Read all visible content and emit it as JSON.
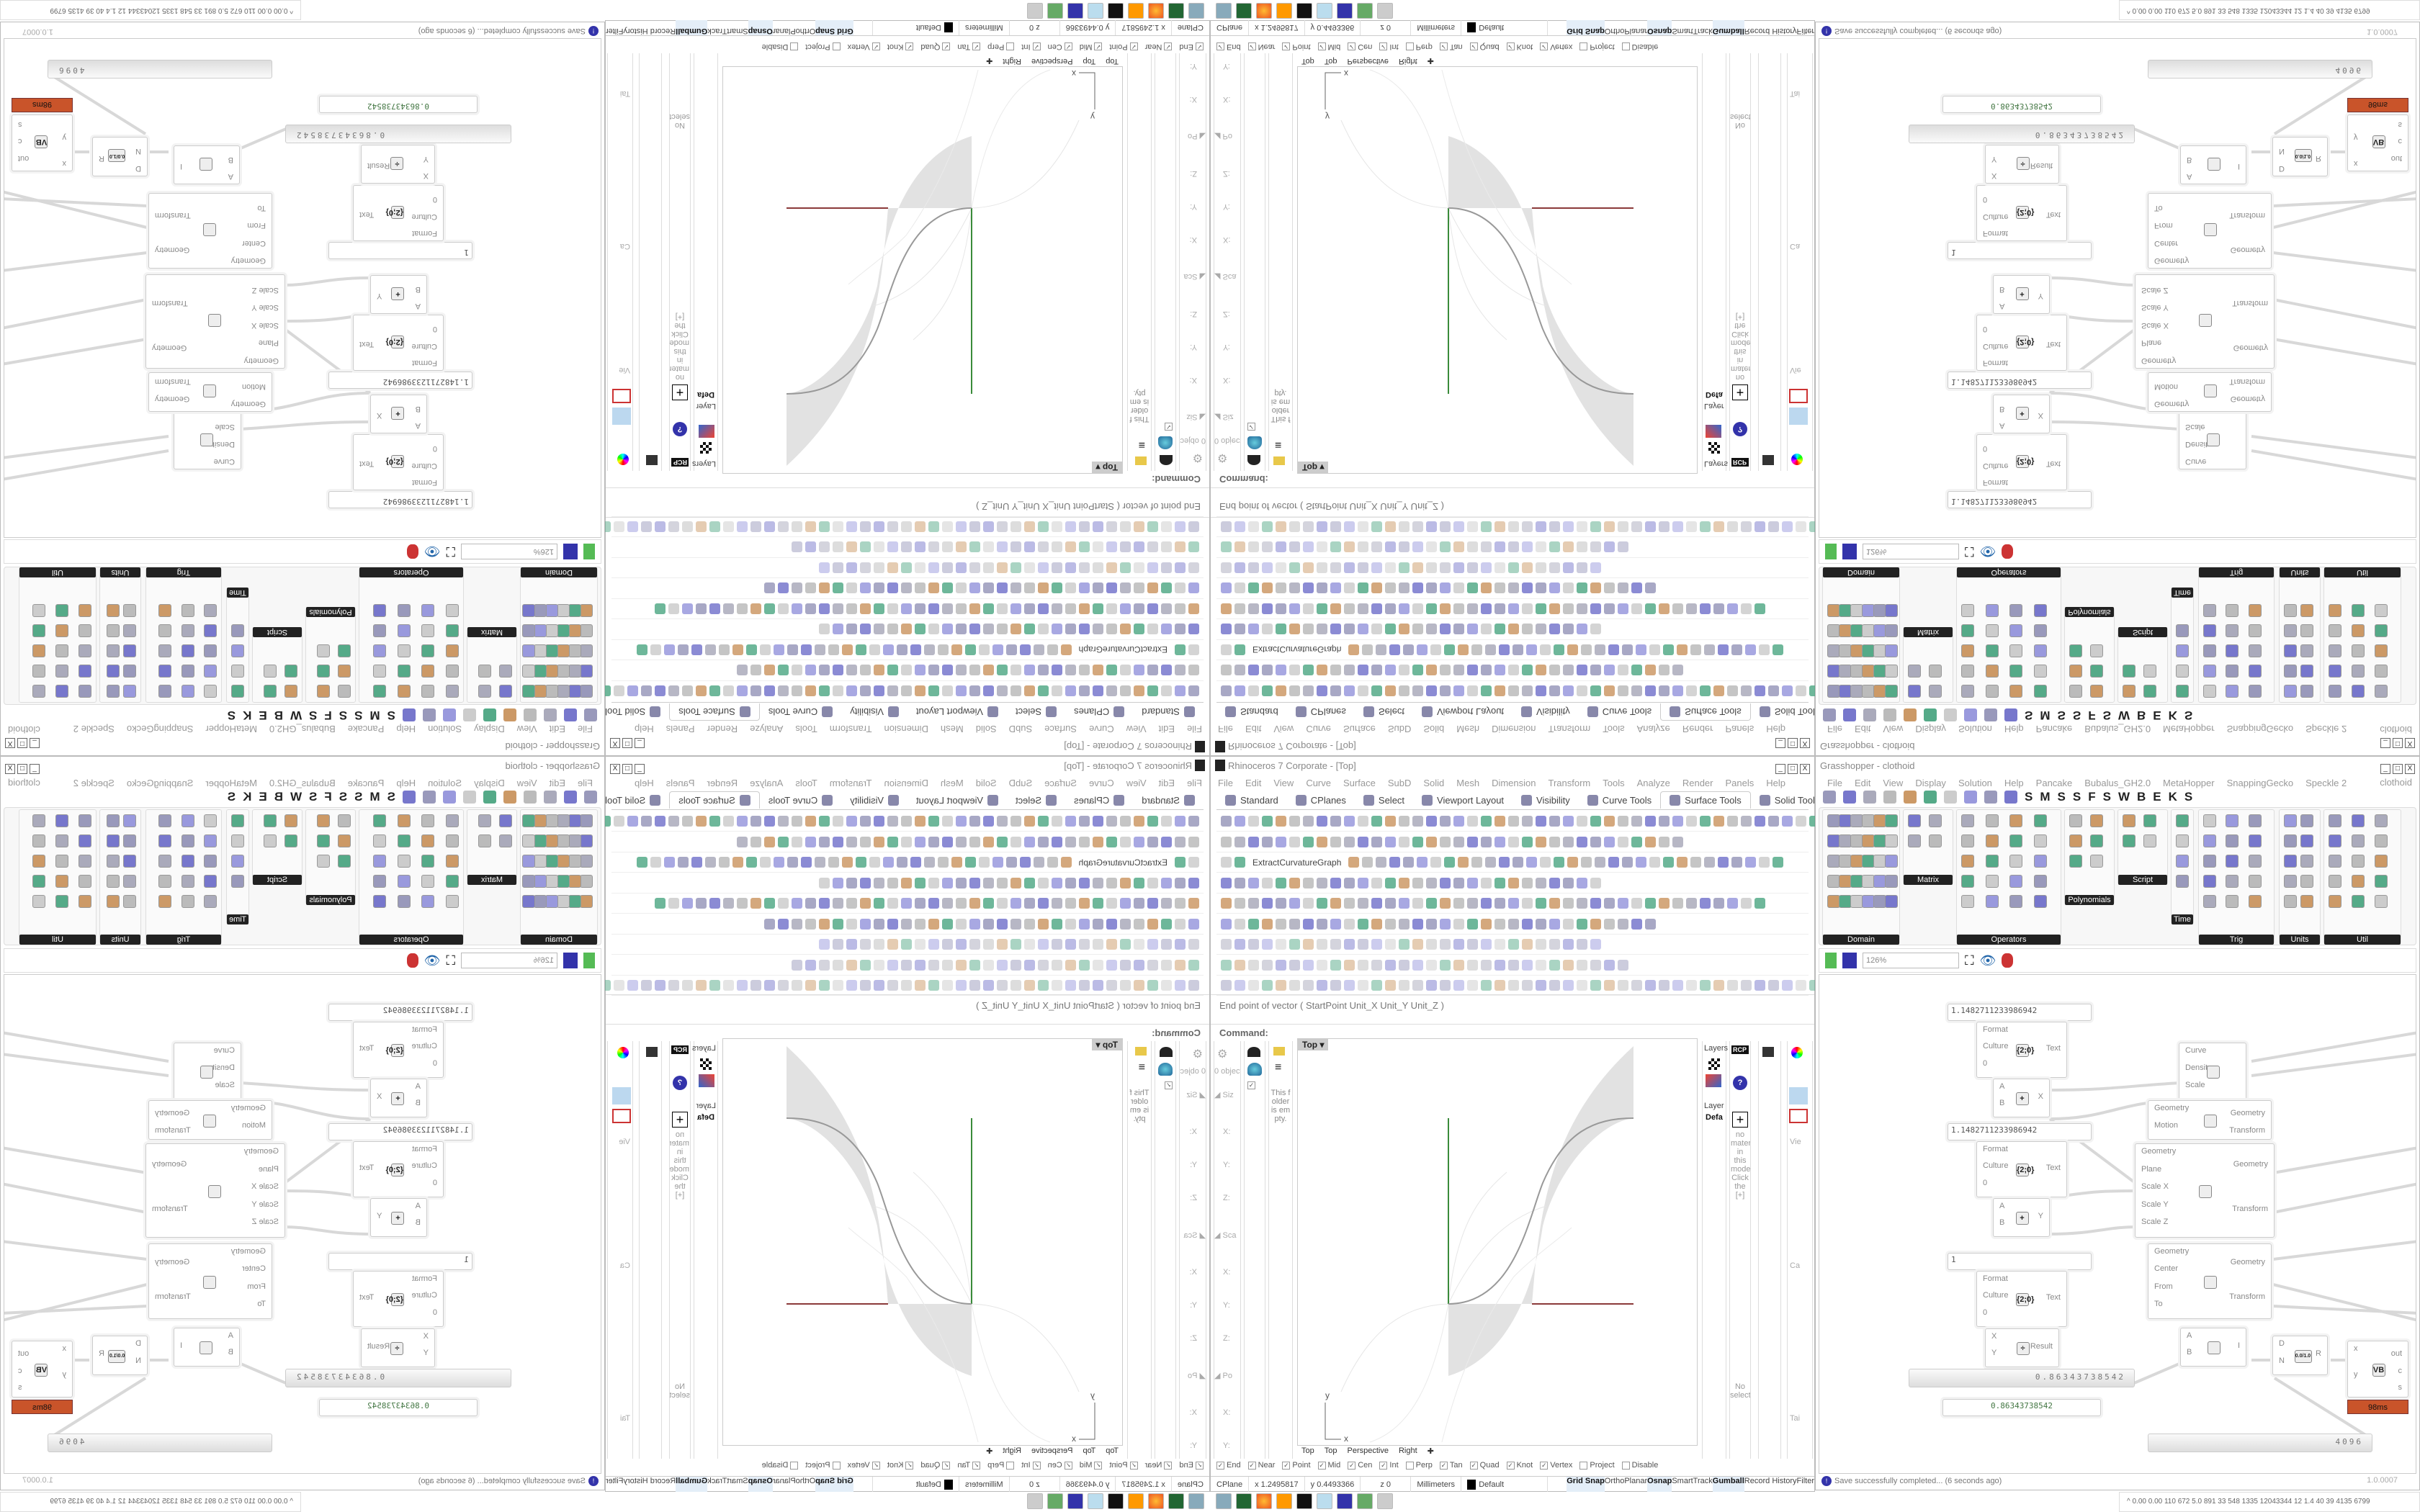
{
  "rhino": {
    "title": "Rhinoceros 7 Corporate - [Top]",
    "menu": [
      "File",
      "Edit",
      "View",
      "Curve",
      "Surface",
      "SubD",
      "Solid",
      "Mesh",
      "Dimension",
      "Transform",
      "Tools",
      "Analyze",
      "Render",
      "Panels",
      "Help"
    ],
    "tabs": [
      "Standard",
      "CPlanes",
      "Select",
      "Viewport Layout",
      "Visibility",
      "Curve Tools",
      "Surface Tools",
      "Solid Tools",
      "SubD"
    ],
    "active_tab": "Surface Tools",
    "toolbar_command": "ExtractCurvatureGraph",
    "command_history": "End point of vector ( StartPoint  Unit_X  Unit_Y  Unit_Z )",
    "command_prompt": "Command:",
    "properties": {
      "count": "0 object",
      "sections": [
        "Siz",
        "Sca",
        "Po",
        "Ro"
      ],
      "axes": [
        "X:",
        "Y:",
        "Z:"
      ]
    },
    "library_empty": "This folder is empty.",
    "layers": {
      "title": "Layers",
      "header": "Layer",
      "row": "Defa"
    },
    "materials_empty": "no material in this model. Click the [+]",
    "no_selection": "No selection",
    "side_labels": [
      "Vie",
      "Ca",
      "Tai",
      "Wa"
    ],
    "viewport": {
      "title": "Top",
      "tabs": [
        "Top",
        "Top",
        "Perspective",
        "Right"
      ],
      "axis_x": "x",
      "axis_y": "y"
    },
    "osnaps": [
      {
        "label": "End",
        "checked": true
      },
      {
        "label": "Near",
        "checked": true
      },
      {
        "label": "Point",
        "checked": true
      },
      {
        "label": "Mid",
        "checked": true
      },
      {
        "label": "Cen",
        "checked": true
      },
      {
        "label": "Int",
        "checked": true
      },
      {
        "label": "Perp",
        "checked": false
      },
      {
        "label": "Tan",
        "checked": true
      },
      {
        "label": "Quad",
        "checked": true
      },
      {
        "label": "Knot",
        "checked": true
      },
      {
        "label": "Vertex",
        "checked": true
      },
      {
        "label": "Project",
        "checked": false
      },
      {
        "label": "Disable",
        "checked": false
      }
    ],
    "status": {
      "cplane": "CPlane",
      "x": "x 1.2495817",
      "y": "y 0.4493366",
      "z": "z 0",
      "units": "Millimeters",
      "layer": "Default",
      "toggles": [
        {
          "label": "Grid Snap",
          "on": true
        },
        {
          "label": "Ortho",
          "on": false
        },
        {
          "label": "Planar",
          "on": false
        },
        {
          "label": "Osnap",
          "on": true
        },
        {
          "label": "SmartTrack",
          "on": false
        },
        {
          "label": "Gumball",
          "on": true
        },
        {
          "label": "Record History",
          "on": false
        },
        {
          "label": "Filter",
          "on": false
        }
      ]
    },
    "colors": {
      "x_axis": "#8b3a3a",
      "y_axis": "#3a8b3a",
      "surface": "#e2e2e2"
    }
  },
  "grasshopper": {
    "title": "Grasshopper - clothoid",
    "menu": [
      "File",
      "Edit",
      "View",
      "Display",
      "Solution",
      "Help",
      "Pancake",
      "Bubalus_GH2.0",
      "MetaHopper",
      "SnappingGecko",
      "Speckle 2"
    ],
    "document": "clothoid",
    "tab_letters": [
      "S",
      "M",
      "S",
      "S",
      "F",
      "S",
      "W",
      "B",
      "E",
      "K",
      "S"
    ],
    "groups": [
      "Domain",
      "Matrix",
      "Operators",
      "Polynomials",
      "Script",
      "Time",
      "Trig",
      "Units",
      "Util"
    ],
    "zoom": "126%",
    "nodes": {
      "panel1": "1.1482711233986942",
      "panel2": "1.1482711233986942",
      "panel3": "1",
      "format": {
        "in": [
          "Format",
          "Culture",
          "0"
        ],
        "icon": "{2;0}",
        "out": "Text"
      },
      "add_x": {
        "in": [
          "A",
          "B"
        ],
        "out": "X"
      },
      "add_y": {
        "in": [
          "A",
          "B"
        ],
        "out": "Y"
      },
      "division": {
        "in": [
          "X",
          "Y"
        ],
        "out": "Result"
      },
      "curve_div": {
        "in": [
          "Curve",
          "Density",
          "Scale"
        ]
      },
      "motion": {
        "in": [
          "Geometry",
          "Motion"
        ],
        "out": [
          "Geometry",
          "Transform"
        ]
      },
      "scale_nu": {
        "in": [
          "Geometry",
          "Plane",
          "Scale X",
          "Scale Y",
          "Scale Z"
        ],
        "out": [
          "Geometry",
          "Transform"
        ]
      },
      "rotate": {
        "in": [
          "Geometry",
          "Center",
          "From",
          "To"
        ],
        "out": [
          "Geometry",
          "Transform"
        ]
      },
      "bounds": {
        "in": [
          "A",
          "B"
        ],
        "out": "I"
      },
      "remap": {
        "in": [
          "D",
          "N"
        ],
        "out": "R",
        "icon_top": "0.0",
        "icon_bottom": "1.0"
      },
      "vb": {
        "in": [
          "x",
          "y"
        ],
        "out": [
          "out",
          "c",
          "s"
        ],
        "time": "98ms"
      },
      "slider1": "0.86343738542",
      "panel_out": "0.86343738542",
      "slider2": "4096"
    },
    "status": "Save successfully completed... (6 seconds ago)",
    "version": "1.0.0007"
  },
  "tray": "0.00 0.00 110 672 5.0 891 33 548 1335 12043344 12 1.4 40 39 4135 6799"
}
